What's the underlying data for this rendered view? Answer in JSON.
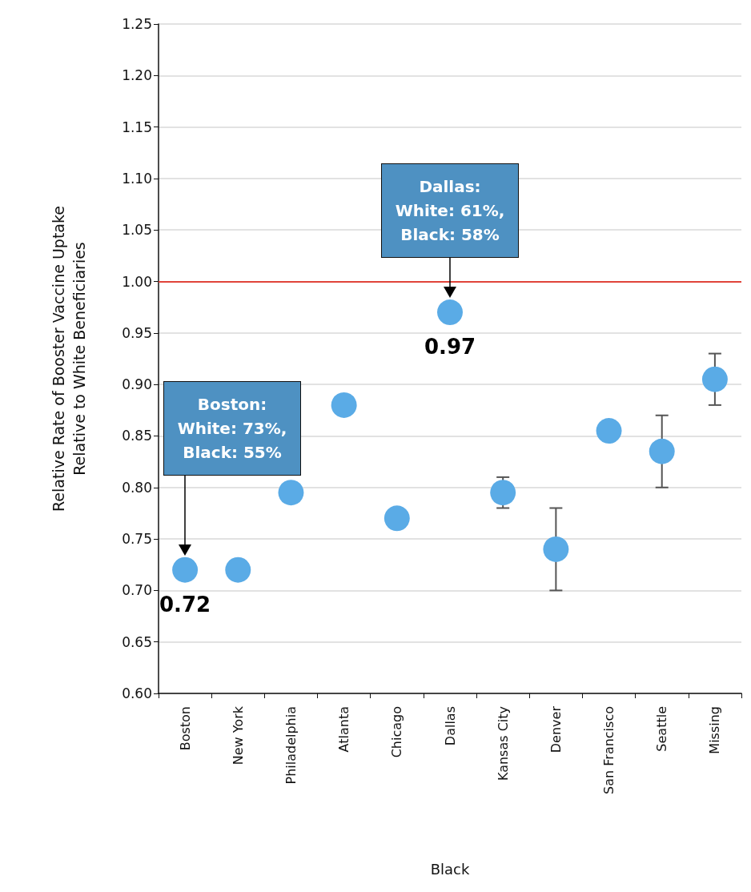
{
  "chart_data": {
    "type": "scatter",
    "ylabel": "Relative Rate of Booster Vaccine Uptake\nRelative to White Beneficiaries",
    "xlabel": "Black",
    "categories": [
      "Boston",
      "New York",
      "Philadelphia",
      "Atlanta",
      "Chicago",
      "Dallas",
      "Kansas City",
      "Denver",
      "San Francisco",
      "Seattle",
      "Missing"
    ],
    "values": [
      0.72,
      0.72,
      0.795,
      0.88,
      0.77,
      0.97,
      0.795,
      0.74,
      0.855,
      0.835,
      0.905
    ],
    "errors": [
      null,
      null,
      null,
      null,
      null,
      null,
      [
        0.78,
        0.81
      ],
      [
        0.7,
        0.78
      ],
      null,
      [
        0.8,
        0.87
      ],
      [
        0.88,
        0.93
      ]
    ],
    "value_labels": [
      "0.72",
      null,
      null,
      null,
      null,
      "0.97",
      null,
      null,
      null,
      null,
      null
    ],
    "color": "#5aabe6",
    "marker": "circle",
    "ylim": [
      0.6,
      1.25
    ],
    "yticks": [
      {
        "value": 0.6,
        "label": "0.60"
      },
      {
        "value": 0.65,
        "label": "0.65"
      },
      {
        "value": 0.7,
        "label": "0.70"
      },
      {
        "value": 0.75,
        "label": "0.75"
      },
      {
        "value": 0.8,
        "label": "0.80"
      },
      {
        "value": 0.85,
        "label": "0.85"
      },
      {
        "value": 0.9,
        "label": "0.90"
      },
      {
        "value": 0.95,
        "label": "0.95"
      },
      {
        "value": 1.0,
        "label": "1.00"
      },
      {
        "value": 1.05,
        "label": "1.05"
      },
      {
        "value": 1.1,
        "label": "1.10"
      },
      {
        "value": 1.15,
        "label": "1.15"
      },
      {
        "value": 1.2,
        "label": "1.20"
      },
      {
        "value": 1.25,
        "label": "1.25"
      }
    ],
    "ref_lines": [
      {
        "axis": "y",
        "value": 1.0,
        "color": "#e0443a"
      }
    ],
    "annotations": [
      "Boston:\nWhite: 73%,\nBlack: 55%",
      "Dallas:\nWhite: 61%,\nBlack: 58%"
    ],
    "grid": "y"
  }
}
